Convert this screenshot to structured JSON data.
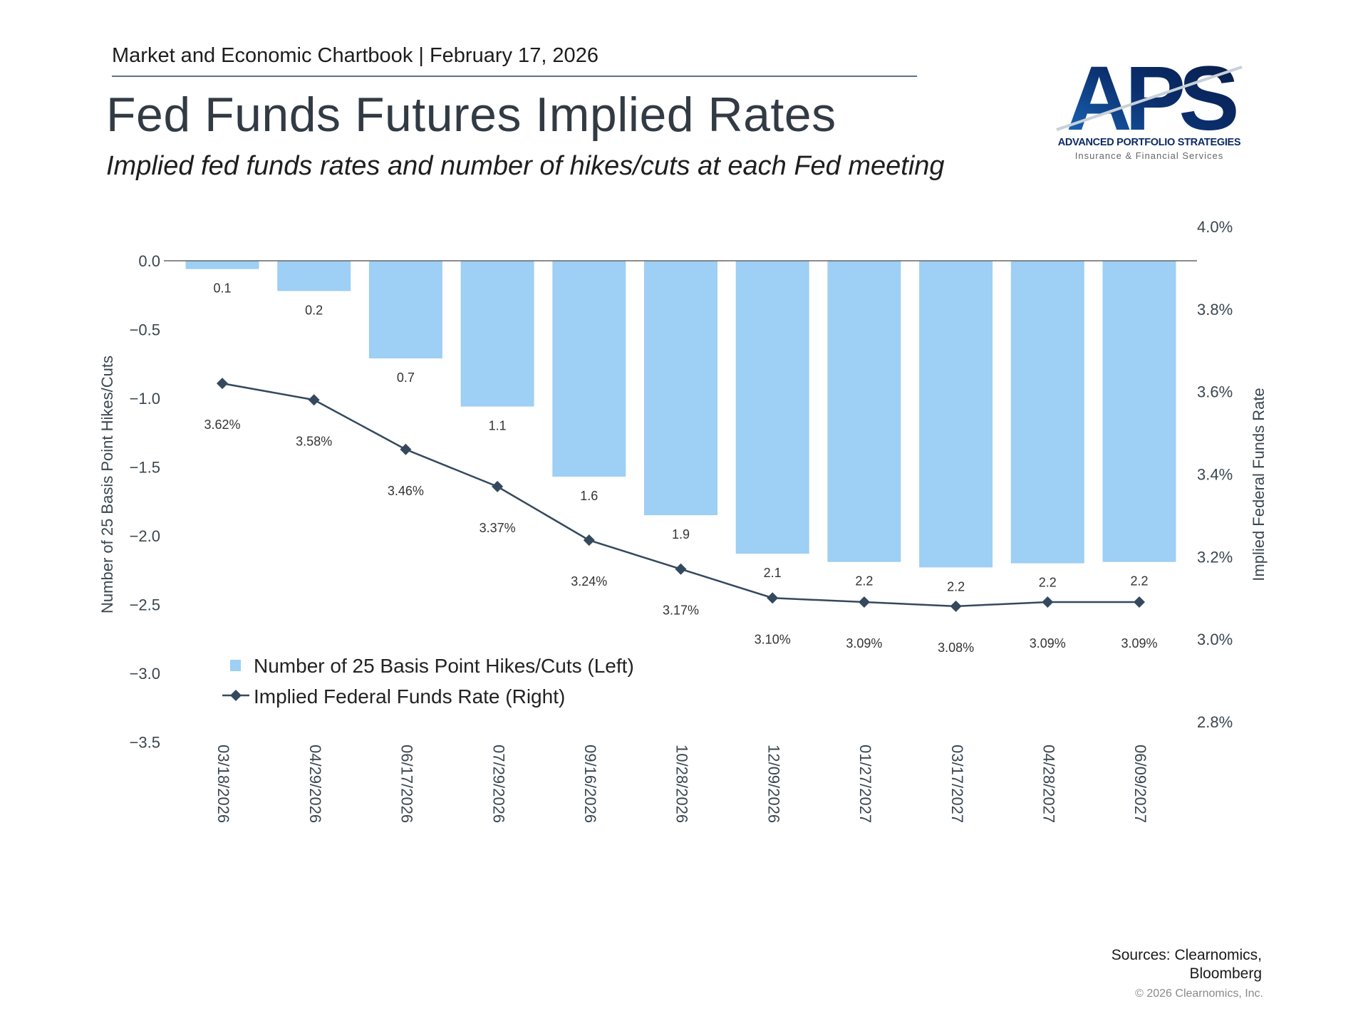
{
  "header": {
    "chartbook_line": "Market and Economic Chartbook | February 17, 2026",
    "title": "Fed Funds Futures Implied Rates",
    "subtitle": "Implied fed funds rates and number of hikes/cuts at each Fed meeting"
  },
  "logo": {
    "letters": "APS",
    "company": "ADVANCED PORTFOLIO STRATEGIES",
    "tagline": "Insurance & Financial Services"
  },
  "footer": {
    "sources_line1": "Sources: Clearnomics,",
    "sources_line2": "Bloomberg",
    "copyright": "© 2026 Clearnomics, Inc."
  },
  "colors": {
    "bar": "#9ecff5",
    "line": "#34495e",
    "axis_text": "#3a4650",
    "baseline": "#666666"
  },
  "chart_data": {
    "type": "bar",
    "title": "Fed Funds Futures Implied Rates",
    "categories": [
      "03/18/2026",
      "04/29/2026",
      "06/17/2026",
      "07/29/2026",
      "09/16/2026",
      "10/28/2026",
      "12/09/2026",
      "01/27/2027",
      "03/17/2027",
      "04/28/2027",
      "06/09/2027"
    ],
    "series": [
      {
        "name": "Number of 25 Basis Point Hikes/Cuts (Left)",
        "type": "bar",
        "axis": "left",
        "values": [
          -0.06,
          -0.22,
          -0.71,
          -1.06,
          -1.57,
          -1.85,
          -2.13,
          -2.19,
          -2.23,
          -2.2,
          -2.19
        ],
        "labels": [
          "0.1",
          "0.2",
          "0.7",
          "1.1",
          "1.6",
          "1.9",
          "2.1",
          "2.2",
          "2.2",
          "2.2",
          "2.2"
        ]
      },
      {
        "name": "Implied Federal Funds Rate (Right)",
        "type": "line",
        "axis": "right",
        "values": [
          3.62,
          3.58,
          3.46,
          3.37,
          3.24,
          3.17,
          3.1,
          3.09,
          3.08,
          3.09,
          3.09
        ],
        "labels": [
          "3.62%",
          "3.58%",
          "3.46%",
          "3.37%",
          "3.24%",
          "3.17%",
          "3.10%",
          "3.09%",
          "3.08%",
          "3.09%",
          "3.09%"
        ]
      }
    ],
    "y_left": {
      "label": "Number of 25 Basis Point Hikes/Cuts",
      "range": [
        -3.5,
        0.0
      ],
      "ticks": [
        0.0,
        -0.5,
        -1.0,
        -1.5,
        -2.0,
        -2.5,
        -3.0,
        -3.5
      ],
      "tick_labels": [
        "0.0",
        "−0.5",
        "−1.0",
        "−1.5",
        "−2.0",
        "−2.5",
        "−3.0",
        "−3.5"
      ]
    },
    "y_right": {
      "label": "Implied Federal Funds Rate",
      "range": [
        2.8,
        4.0
      ],
      "ticks": [
        4.0,
        3.8,
        3.6,
        3.4,
        3.2,
        3.0,
        2.8
      ],
      "tick_labels": [
        "4.0%",
        "3.8%",
        "3.6%",
        "3.4%",
        "3.2%",
        "3.0%",
        "2.8%"
      ]
    },
    "legend": {
      "position": "bottom-left",
      "items": [
        "Number of 25 Basis Point Hikes/Cuts (Left)",
        "Implied Federal Funds Rate (Right)"
      ]
    },
    "grid": false
  }
}
